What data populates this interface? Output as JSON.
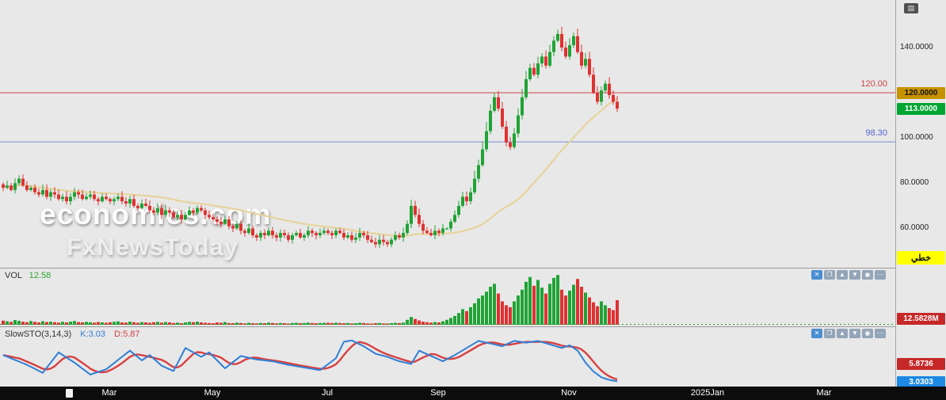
{
  "app": {
    "menu_icon": "▤"
  },
  "colors": {
    "background": "#e8e8e8",
    "up": "#1fa335",
    "down": "#e03131",
    "ma": "#e6d49c",
    "resistance": "#e06666",
    "support": "#8b9ae0",
    "k_line": "#2f7fd6",
    "d_line": "#d84040",
    "axis_bar": "#0c0c0c",
    "resistance_badge_bg": "#c79200",
    "last_price_badge_bg": "#00a532",
    "volume_badge_bg": "#c62828",
    "k_badge_bg": "#1e88e5",
    "scale_badge_bg": "#ffff00"
  },
  "watermark": {
    "line1": "economies.com",
    "line2": "FxNewsToday"
  },
  "price_panel": {
    "resistance_label": "120.00",
    "support_label": "98.30"
  },
  "price_axis": {
    "plain_labels": [
      "140.0000",
      "100.0000",
      "80.0000",
      "60.0000"
    ],
    "resistance_badge": "120.0000",
    "last_price_badge": "113.0000",
    "scale_badge": "خطي"
  },
  "volume_panel": {
    "label": "VOL",
    "value": "12.58",
    "badge": "12.5828M"
  },
  "sto_panel": {
    "label": "SlowSTO(3,14,3)",
    "k": "K:3.03",
    "d": "D:5.87",
    "d_badge": "5.8736",
    "k_badge": "3.0303"
  },
  "panel_toolbar": {
    "icons": [
      {
        "name": "close",
        "glyph": "✕"
      },
      {
        "name": "restore",
        "glyph": "❐"
      },
      {
        "name": "move-up",
        "glyph": "▲"
      },
      {
        "name": "move-down",
        "glyph": "▼"
      },
      {
        "name": "settings",
        "glyph": "◉"
      },
      {
        "name": "more",
        "glyph": "⋯"
      }
    ]
  },
  "time_axis": {
    "labels": [
      "Mar",
      "May",
      "Jul",
      "Sep",
      "Nov",
      "2025Jan",
      "Mar"
    ]
  },
  "chart_data": [
    {
      "type": "candlestick",
      "name": "price",
      "ylim": [
        45,
        161
      ],
      "y_ticks": [
        60,
        80,
        100,
        120,
        140
      ],
      "last_close": 113.0,
      "levels": [
        {
          "value": 120.0,
          "label": "120.00",
          "color": "#d04545"
        },
        {
          "value": 98.3,
          "label": "98.30",
          "color": "#7b8cd8"
        }
      ],
      "moving_average": {
        "window": 40,
        "color": "#e6d49c"
      },
      "x_labels": [
        "Mar",
        "May",
        "Jul",
        "Sep",
        "Nov",
        "2025Jan",
        "Mar"
      ],
      "closes": [
        78,
        79,
        77,
        80,
        82,
        79,
        77,
        78,
        76,
        75,
        77,
        74,
        76,
        75,
        73,
        74,
        72,
        74,
        76,
        75,
        73,
        74,
        75,
        73,
        72,
        74,
        73,
        72,
        73,
        74,
        72,
        71,
        73,
        70,
        69,
        71,
        70,
        68,
        67,
        69,
        66,
        68,
        67,
        65,
        66,
        64,
        66,
        68,
        67,
        69,
        68,
        66,
        65,
        64,
        63,
        62,
        64,
        61,
        60,
        62,
        59,
        58,
        60,
        57,
        56,
        58,
        57,
        59,
        57,
        56,
        58,
        57,
        55,
        57,
        58,
        56,
        57,
        59,
        58,
        57,
        58,
        59,
        58,
        57,
        59,
        58,
        56,
        57,
        55,
        56,
        58,
        57,
        55,
        54,
        53,
        55,
        54,
        53,
        55,
        57,
        56,
        58,
        62,
        70,
        66,
        62,
        59,
        58,
        57,
        59,
        58,
        60,
        60,
        63,
        66,
        70,
        74,
        72,
        76,
        82,
        88,
        95,
        103,
        112,
        118,
        113,
        105,
        98,
        96,
        102,
        110,
        118,
        126,
        131,
        128,
        133,
        136,
        132,
        138,
        143,
        146,
        140,
        136,
        141,
        145,
        138,
        132,
        135,
        128,
        120,
        116,
        121,
        124,
        119,
        116,
        113
      ]
    },
    {
      "type": "bar",
      "name": "volume",
      "current": 12.5828,
      "unit": "M",
      "ylim": [
        0,
        26
      ],
      "values": [
        2.1,
        1.8,
        1.5,
        2.4,
        2.0,
        1.6,
        1.3,
        1.9,
        1.5,
        1.2,
        1.8,
        1.4,
        1.6,
        1.3,
        1.1,
        1.5,
        1.2,
        1.6,
        1.9,
        1.4,
        1.2,
        1.5,
        1.3,
        1.1,
        1.4,
        1.2,
        1.0,
        1.3,
        1.5,
        1.7,
        1.2,
        1.1,
        1.6,
        1.3,
        1.0,
        1.4,
        1.2,
        1.0,
        1.3,
        1.5,
        1.1,
        1.4,
        1.2,
        0.9,
        1.1,
        0.8,
        1.2,
        1.5,
        1.3,
        1.6,
        1.2,
        1.0,
        0.9,
        0.8,
        1.2,
        1.0,
        1.4,
        0.9,
        0.8,
        1.1,
        0.9,
        0.7,
        1.0,
        0.8,
        0.7,
        0.9,
        0.8,
        1.1,
        0.9,
        0.7,
        0.9,
        0.8,
        0.6,
        0.9,
        1.0,
        0.8,
        0.9,
        1.1,
        0.9,
        0.8,
        0.9,
        1.0,
        1.0,
        0.9,
        1.1,
        0.9,
        0.8,
        0.9,
        0.7,
        0.8,
        1.0,
        0.9,
        0.7,
        0.6,
        0.8,
        0.9,
        0.7,
        0.6,
        0.8,
        1.0,
        0.9,
        1.1,
        2.5,
        4.0,
        3.0,
        2.2,
        1.6,
        1.3,
        1.1,
        1.4,
        1.2,
        1.8,
        2.5,
        3.5,
        4.5,
        6.0,
        8.0,
        7.0,
        9.0,
        11.0,
        13.5,
        15.0,
        17.0,
        19.5,
        21.0,
        16.0,
        12.0,
        10.0,
        9.0,
        12.0,
        15.0,
        18.0,
        22.0,
        24.5,
        20.0,
        23.0,
        19.0,
        16.0,
        21.0,
        24.0,
        25.5,
        18.0,
        15.0,
        17.5,
        20.5,
        23.5,
        19.5,
        16.5,
        14.0,
        11.5,
        9.5,
        12.0,
        10.0,
        8.5,
        7.5,
        12.6
      ]
    },
    {
      "type": "line",
      "name": "slow-stochastic",
      "params": "3,14,3",
      "k": 3.03,
      "d": 5.87,
      "ylim": [
        0,
        100
      ],
      "k_points": [
        [
          0,
          62
        ],
        [
          6,
          40
        ],
        [
          10,
          22
        ],
        [
          14,
          68
        ],
        [
          18,
          45
        ],
        [
          22,
          18
        ],
        [
          26,
          30
        ],
        [
          32,
          72
        ],
        [
          35,
          50
        ],
        [
          37,
          62
        ],
        [
          40,
          38
        ],
        [
          43,
          26
        ],
        [
          46,
          78
        ],
        [
          50,
          58
        ],
        [
          52,
          68
        ],
        [
          56,
          32
        ],
        [
          60,
          60
        ],
        [
          64,
          52
        ],
        [
          68,
          48
        ],
        [
          72,
          40
        ],
        [
          76,
          34
        ],
        [
          80,
          28
        ],
        [
          84,
          55
        ],
        [
          86,
          92
        ],
        [
          88,
          95
        ],
        [
          91,
          82
        ],
        [
          94,
          65
        ],
        [
          97,
          58
        ],
        [
          100,
          48
        ],
        [
          103,
          42
        ],
        [
          105,
          72
        ],
        [
          108,
          60
        ],
        [
          111,
          48
        ],
        [
          114,
          62
        ],
        [
          117,
          78
        ],
        [
          120,
          94
        ],
        [
          123,
          88
        ],
        [
          126,
          82
        ],
        [
          129,
          94
        ],
        [
          132,
          90
        ],
        [
          135,
          94
        ],
        [
          138,
          86
        ],
        [
          141,
          78
        ],
        [
          143,
          84
        ],
        [
          145,
          72
        ],
        [
          147,
          45
        ],
        [
          149,
          25
        ],
        [
          151,
          12
        ],
        [
          153,
          6
        ],
        [
          155,
          3
        ]
      ]
    }
  ]
}
